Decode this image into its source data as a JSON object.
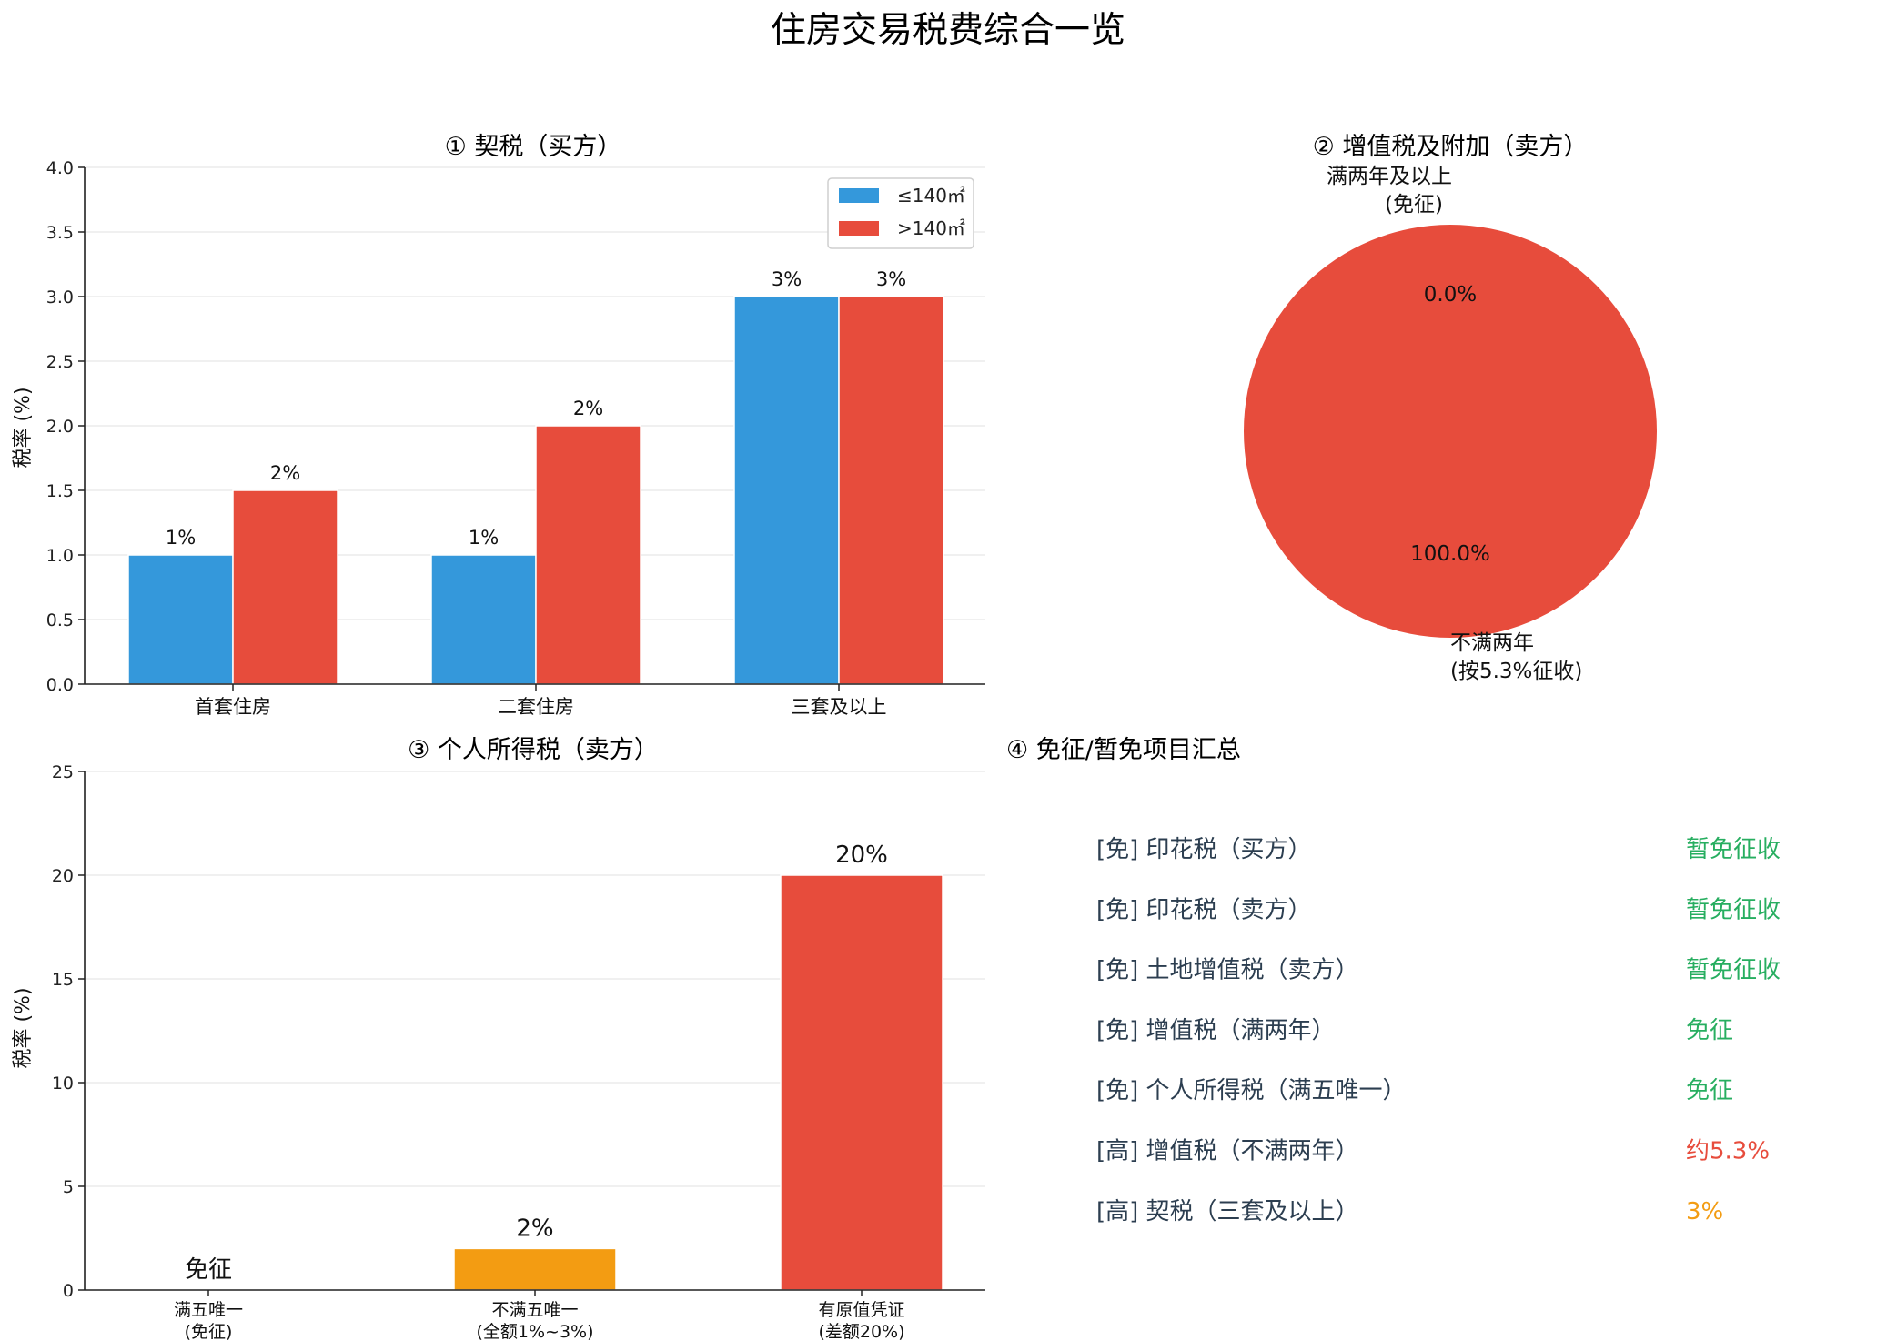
{
  "title": "住房交易税费综合一览",
  "colors": {
    "blue": "#3498db",
    "red": "#e74c3c",
    "orange": "#f39c12",
    "green": "#27ae60",
    "dark": "#2c3e50"
  },
  "chart_data": [
    {
      "id": "deed-tax",
      "type": "bar",
      "title": "① 契税（买方）",
      "ylabel": "税率 (%)",
      "ylim": [
        0,
        4.0
      ],
      "yticks": [
        "0.0",
        "0.5",
        "1.0",
        "1.5",
        "2.0",
        "2.5",
        "3.0",
        "3.5",
        "4.0"
      ],
      "categories": [
        "首套住房",
        "二套住房",
        "三套及以上"
      ],
      "series": [
        {
          "name": "≤140㎡",
          "color": "#3498db",
          "values": [
            1.0,
            1.0,
            3.0
          ],
          "labels": [
            "1%",
            "1%",
            "3%"
          ]
        },
        {
          "name": ">140㎡",
          "color": "#e74c3c",
          "values": [
            1.5,
            2.0,
            3.0
          ],
          "labels": [
            "2%",
            "2%",
            "3%"
          ]
        }
      ],
      "grid": true,
      "legend": "top-right"
    },
    {
      "id": "vat-pie",
      "type": "pie",
      "title": "② 增值税及附加（卖方）",
      "slices": [
        {
          "label_line1": "满两年及以上",
          "label_line2": "(免征)",
          "value": 0.0,
          "pct": "0.0%",
          "color": "#3498db"
        },
        {
          "label_line1": "不满两年",
          "label_line2": "(按5.3%征收)",
          "value": 100.0,
          "pct": "100.0%",
          "color": "#e74c3c"
        }
      ]
    },
    {
      "id": "income-tax",
      "type": "bar",
      "title": "③ 个人所得税（卖方）",
      "ylabel": "税率 (%)",
      "ylim": [
        0,
        25
      ],
      "yticks": [
        "0",
        "5",
        "10",
        "15",
        "20",
        "25"
      ],
      "categories": [
        {
          "line1": "满五唯一",
          "line2": "(免征)"
        },
        {
          "line1": "不满五唯一",
          "line2": "(全额1%~3%)"
        },
        {
          "line1": "有原值凭证",
          "line2": "(差额20%)"
        }
      ],
      "values": [
        0,
        2,
        20
      ],
      "colors": [
        "#27ae60",
        "#f39c12",
        "#e74c3c"
      ],
      "labels": [
        "免征",
        "2%",
        "20%"
      ],
      "grid": true
    }
  ],
  "summary": {
    "title": "④ 免征/暂免项目汇总",
    "items": [
      {
        "label": "[免] 印花税（买方）",
        "value": "暂免征收",
        "color": "#27ae60"
      },
      {
        "label": "[免] 印花税（卖方）",
        "value": "暂免征收",
        "color": "#27ae60"
      },
      {
        "label": "[免] 土地增值税（卖方）",
        "value": "暂免征收",
        "color": "#27ae60"
      },
      {
        "label": "[免] 增值税（满两年）",
        "value": "免征",
        "color": "#27ae60"
      },
      {
        "label": "[免] 个人所得税（满五唯一）",
        "value": "免征",
        "color": "#27ae60"
      },
      {
        "label": "[高] 增值税（不满两年）",
        "value": "约5.3%",
        "color": "#e74c3c"
      },
      {
        "label": "[高] 契税（三套及以上）",
        "value": "3%",
        "color": "#f39c12"
      }
    ]
  }
}
